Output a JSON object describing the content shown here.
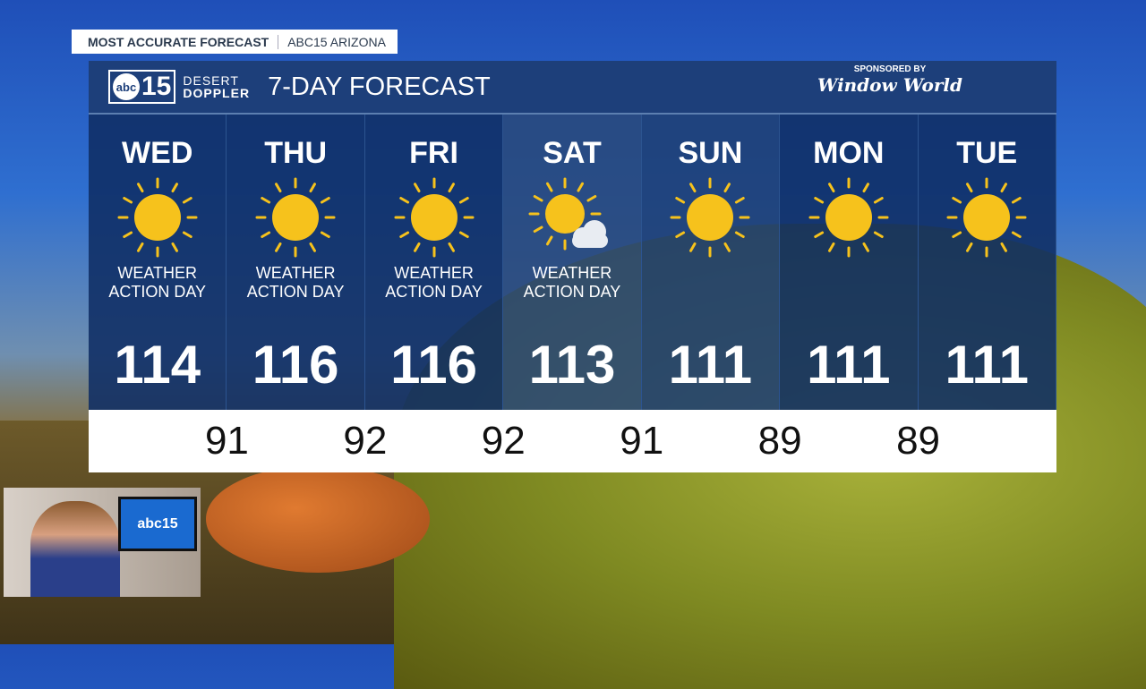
{
  "banner": {
    "left": "MOST ACCURATE FORECAST",
    "right": "ABC15 ARIZONA"
  },
  "header": {
    "logo_abc": "abc",
    "logo_num": "15",
    "logo_line1": "DESERT",
    "logo_line2": "DOPPLER",
    "title": "7-DAY FORECAST",
    "sponsor_label": "SPONSORED BY",
    "sponsor_name": "Window World"
  },
  "days": [
    {
      "name": "WED",
      "icon": "sun-icon",
      "note1": "WEATHER",
      "note2": "ACTION DAY",
      "high": "114"
    },
    {
      "name": "THU",
      "icon": "sun-icon",
      "note1": "WEATHER",
      "note2": "ACTION DAY",
      "high": "116"
    },
    {
      "name": "FRI",
      "icon": "sun-icon",
      "note1": "WEATHER",
      "note2": "ACTION DAY",
      "high": "116"
    },
    {
      "name": "SAT",
      "icon": "partly-cloudy-icon",
      "note1": "WEATHER",
      "note2": "ACTION DAY",
      "high": "113"
    },
    {
      "name": "SUN",
      "icon": "sun-icon",
      "high": "111"
    },
    {
      "name": "MON",
      "icon": "sun-icon",
      "high": "111"
    },
    {
      "name": "TUE",
      "icon": "sun-icon",
      "high": "111"
    }
  ],
  "lows": [
    "91",
    "92",
    "92",
    "91",
    "89",
    "89"
  ],
  "camera": {
    "tv_text": "abc15"
  },
  "colors": {
    "panel": "#1d3f7a",
    "sun": "#f6c21c"
  }
}
